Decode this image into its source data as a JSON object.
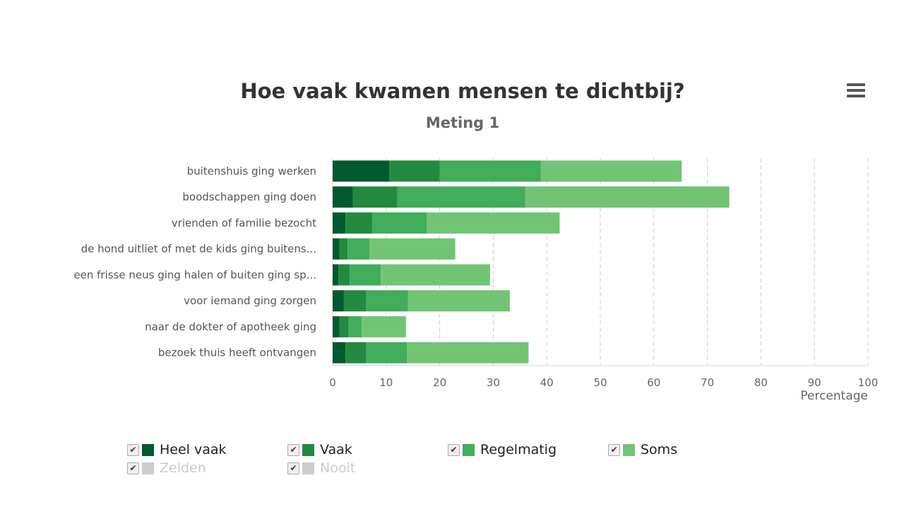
{
  "chart_data": {
    "type": "bar",
    "orientation": "horizontal",
    "stacked": true,
    "title": "Hoe vaak kwamen mensen te dichtbij?",
    "subtitle": "Meting 1",
    "xlabel": "Percentage",
    "xlim": [
      0,
      100
    ],
    "xticks": [
      "0",
      "10",
      "20",
      "30",
      "40",
      "50",
      "60",
      "70",
      "80",
      "90",
      "100"
    ],
    "grid": "vertical dashed",
    "legend_position": "bottom",
    "categories": [
      "buitenshuis ging werken",
      "boodschappen ging doen",
      "vrienden of familie bezocht",
      "de hond uitliet of met de kids ging buitens...",
      "een frisse neus ging halen of buiten ging sp...",
      "voor iemand ging zorgen",
      "naar de dokter of apotheek ging",
      "bezoek thuis heeft ontvangen"
    ],
    "series": [
      {
        "name": "Heel vaak",
        "color": "#005a2e",
        "visible": true,
        "values": [
          10.6,
          3.8,
          2.4,
          1.3,
          1.1,
          2.1,
          1.3,
          2.4
        ]
      },
      {
        "name": "Vaak",
        "color": "#23893f",
        "visible": true,
        "values": [
          9.4,
          8.3,
          5.0,
          1.5,
          2.1,
          4.1,
          1.7,
          3.8
        ]
      },
      {
        "name": "Regelmatig",
        "color": "#41ac5a",
        "visible": true,
        "values": [
          18.9,
          23.9,
          10.2,
          4.1,
          5.8,
          7.9,
          2.4,
          7.7
        ]
      },
      {
        "name": "Soms",
        "color": "#72c475",
        "visible": true,
        "values": [
          26.3,
          38.1,
          24.8,
          16.0,
          20.4,
          19.0,
          8.3,
          22.7
        ]
      },
      {
        "name": "Zelden",
        "color": "#cccccc",
        "visible": false
      },
      {
        "name": "Nooit",
        "color": "#cccccc",
        "visible": false
      }
    ]
  },
  "menu_icon": "hamburger-menu-icon",
  "checkbox_icon": "✔"
}
